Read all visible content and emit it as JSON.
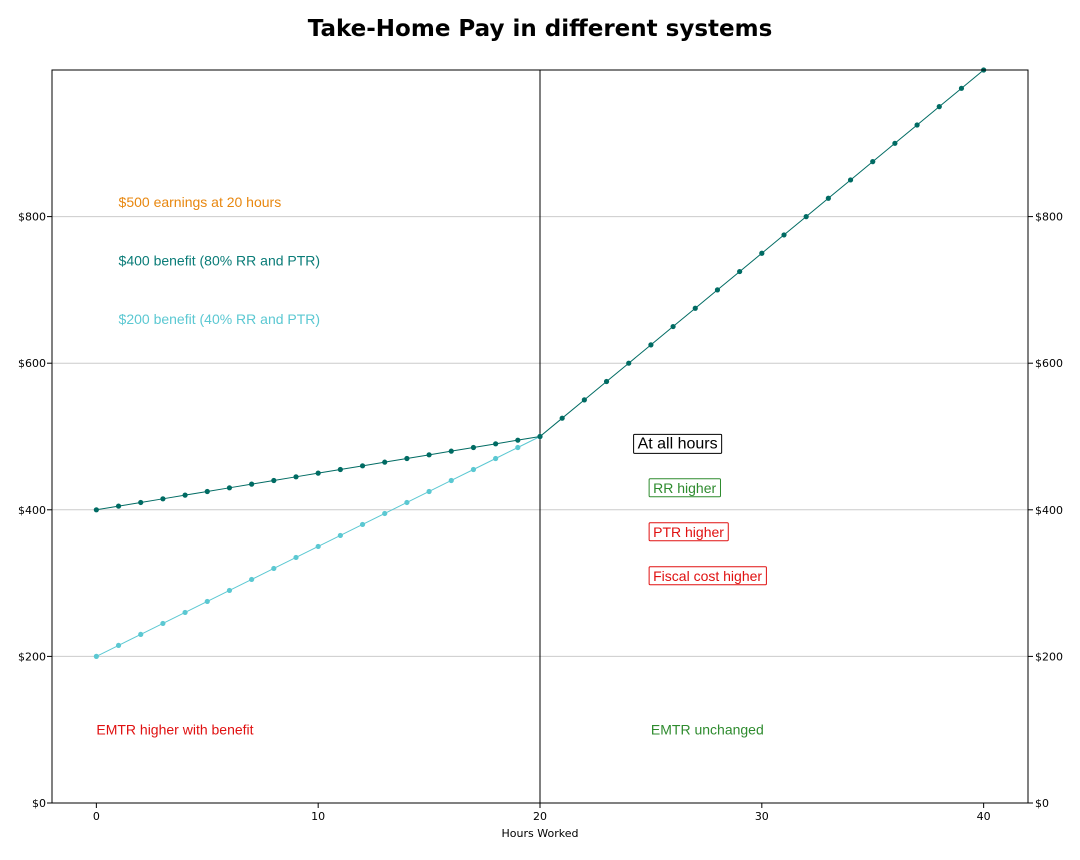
{
  "chart_data": {
    "type": "line",
    "title": "Take-Home Pay in different systems",
    "xlabel": "Hours Worked",
    "ylabel": "",
    "xlim": [
      -2,
      42
    ],
    "ylim": [
      0,
      1000
    ],
    "x_ticks": [
      0,
      10,
      20,
      30,
      40
    ],
    "x_tick_labels": [
      "0",
      "10",
      "20",
      "30",
      "40"
    ],
    "y_ticks": [
      0,
      200,
      400,
      600,
      800
    ],
    "y_tick_labels": [
      "$0",
      "$200",
      "$400",
      "$600",
      "$800"
    ],
    "grid": "horizontal",
    "secondary_y_axis": true,
    "reference_line_x": 20,
    "series": [
      {
        "color": "#006b63",
        "x": [
          0,
          1,
          2,
          3,
          4,
          5,
          6,
          7,
          8,
          9,
          10,
          11,
          12,
          13,
          14,
          15,
          16,
          17,
          18,
          19,
          20,
          21,
          22,
          23,
          24,
          25,
          26,
          27,
          28,
          29,
          30,
          31,
          32,
          33,
          34,
          35,
          36,
          37,
          38,
          39,
          40
        ],
        "values": [
          400,
          405,
          410,
          415,
          420,
          425,
          430,
          435,
          440,
          445,
          450,
          455,
          460,
          465,
          470,
          475,
          480,
          485,
          490,
          495,
          500,
          525,
          550,
          575,
          600,
          625,
          650,
          675,
          700,
          725,
          750,
          775,
          800,
          825,
          850,
          875,
          900,
          925,
          950,
          975,
          1000
        ]
      },
      {
        "color": "#5bc8d2",
        "x": [
          0,
          1,
          2,
          3,
          4,
          5,
          6,
          7,
          8,
          9,
          10,
          11,
          12,
          13,
          14,
          15,
          16,
          17,
          18,
          19,
          20
        ],
        "values": [
          200,
          215,
          230,
          245,
          260,
          275,
          290,
          305,
          320,
          335,
          350,
          365,
          380,
          395,
          410,
          425,
          440,
          455,
          470,
          485,
          500
        ]
      }
    ],
    "annotations": [
      {
        "text": "$500 earnings at 20 hours",
        "color": "#e8870f",
        "boxed": false
      },
      {
        "text": "$400 benefit (80% RR and PTR)",
        "color": "#0a7c78",
        "boxed": false
      },
      {
        "text": "$200 benefit (40% RR and PTR)",
        "color": "#5bc8d2",
        "boxed": false
      },
      {
        "text": "At all hours",
        "color": "#000000",
        "boxed": true
      },
      {
        "text": "RR higher",
        "color": "#2e8b2e",
        "boxed": true
      },
      {
        "text": "PTR higher",
        "color": "#e01010",
        "boxed": true
      },
      {
        "text": "Fiscal cost higher",
        "color": "#e01010",
        "boxed": true
      },
      {
        "text": "EMTR higher with benefit",
        "color": "#e01010",
        "boxed": false
      },
      {
        "text": "EMTR unchanged",
        "color": "#2e8b2e",
        "boxed": false
      }
    ]
  }
}
